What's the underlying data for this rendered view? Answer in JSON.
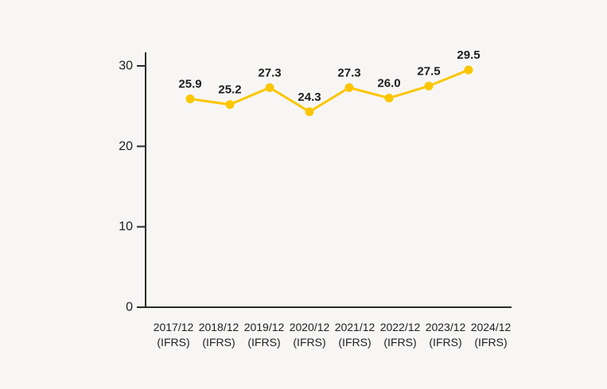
{
  "chart_data": {
    "type": "line",
    "title": "",
    "categories": [
      {
        "line1": "2017/12",
        "line2": "(IFRS)"
      },
      {
        "line1": "2018/12",
        "line2": "(IFRS)"
      },
      {
        "line1": "2019/12",
        "line2": "(IFRS)"
      },
      {
        "line1": "2020/12",
        "line2": "(IFRS)"
      },
      {
        "line1": "2021/12",
        "line2": "(IFRS)"
      },
      {
        "line1": "2022/12",
        "line2": "(IFRS)"
      },
      {
        "line1": "2023/12",
        "line2": "(IFRS)"
      },
      {
        "line1": "2024/12",
        "line2": "(IFRS)"
      }
    ],
    "values": [
      25.9,
      25.2,
      27.3,
      24.3,
      27.3,
      26.0,
      27.5,
      29.5
    ],
    "value_labels": [
      "25.9",
      "25.2",
      "27.3",
      "24.3",
      "27.3",
      "26.0",
      "27.5",
      "29.5"
    ],
    "y_ticks": [
      0,
      10,
      20,
      30
    ],
    "y_tick_labels": [
      "0",
      "10",
      "20",
      "30"
    ],
    "ylim": [
      0,
      31.7
    ],
    "xlabel": "",
    "ylabel": "",
    "grid": false,
    "legend_position": "none",
    "colors": {
      "line": "#FBC600",
      "marker": "#FBC600",
      "axis": "#2B2B2B",
      "text": "#1E1E1E",
      "background": "#F7F6F5"
    }
  }
}
